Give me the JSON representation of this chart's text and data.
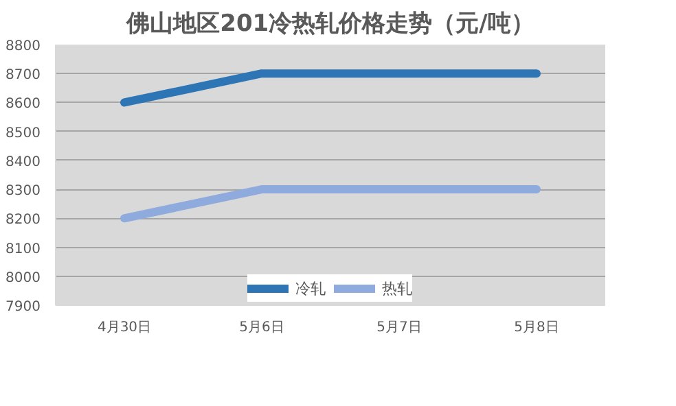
{
  "chart_data": {
    "type": "line",
    "title": "佛山地区201冷热轧价格走势（元/吨）",
    "categories": [
      "4月30日",
      "5月6日",
      "5月7日",
      "5月8日"
    ],
    "series": [
      {
        "name": "冷轧",
        "color": "#2e75b6",
        "values": [
          8600,
          8700,
          8700,
          8700
        ]
      },
      {
        "name": "热轧",
        "color": "#8faadc",
        "values": [
          8200,
          8300,
          8300,
          8300
        ]
      }
    ],
    "ylim": [
      7900,
      8800
    ],
    "yticks": [
      7900,
      8000,
      8100,
      8200,
      8300,
      8400,
      8500,
      8600,
      8700,
      8800
    ],
    "grid": "y",
    "legend": "bottom",
    "marker": "none",
    "line_style": "solid"
  }
}
